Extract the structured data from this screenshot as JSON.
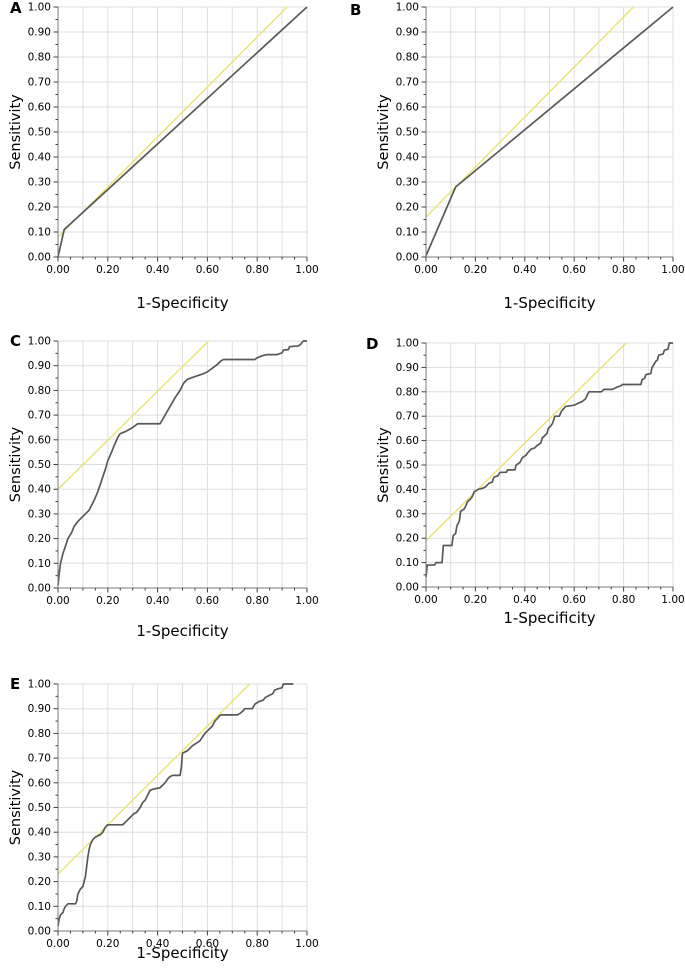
{
  "figure": {
    "panels": [
      {
        "label": "A"
      },
      {
        "label": "B"
      },
      {
        "label": "C"
      },
      {
        "label": "D"
      },
      {
        "label": "E"
      }
    ]
  },
  "colors": {
    "curve": "#595959",
    "reference": "#e9e472",
    "grid": "#dedede",
    "axis_line": "#7a7a7a",
    "tick": "#3f3f3f",
    "text": "#000000",
    "background": "#ffffff"
  },
  "axes": {
    "xlim": [
      0,
      1
    ],
    "ylim": [
      0,
      1
    ],
    "grid_step": 0.1,
    "minor_tick_step": 0.05,
    "x_tick_values": [
      0,
      0.2,
      0.4,
      0.6,
      0.8,
      1.0
    ],
    "x_tick_labels": [
      "0.00",
      "0.20",
      "0.40",
      "0.60",
      "0.80",
      "1.00"
    ],
    "y_tick_values": [
      0,
      0.1,
      0.2,
      0.3,
      0.4,
      0.5,
      0.6,
      0.7,
      0.8,
      0.9,
      1.0
    ],
    "y_tick_labels": [
      "0.00",
      "0.10",
      "0.20",
      "0.30",
      "0.40",
      "0.50",
      "0.60",
      "0.70",
      "0.80",
      "0.90",
      "1.00"
    ]
  },
  "chart_data": [
    {
      "type": "line",
      "panel": "A",
      "xlabel": "1-Specificity",
      "ylabel": "Sensitivity",
      "xlim": [
        0,
        1
      ],
      "ylim": [
        0,
        1
      ],
      "grid": true,
      "legend": "none",
      "series": [
        {
          "name": "ROC curve",
          "color": "#595959",
          "points": [
            [
              0,
              0
            ],
            [
              0.025,
              0.11
            ],
            [
              1,
              1
            ]
          ]
        },
        {
          "name": "Reference line",
          "color": "#e9e472",
          "points": [
            [
              0,
              0.08
            ],
            [
              0.92,
              1.0
            ]
          ]
        }
      ]
    },
    {
      "type": "line",
      "panel": "B",
      "xlabel": "1-Specificity",
      "ylabel": "Sensitivity",
      "xlim": [
        0,
        1
      ],
      "ylim": [
        0,
        1
      ],
      "grid": true,
      "legend": "none",
      "series": [
        {
          "name": "ROC curve",
          "color": "#595959",
          "points": [
            [
              0,
              0.005
            ],
            [
              0.12,
              0.28
            ],
            [
              1,
              1
            ]
          ]
        },
        {
          "name": "Reference line",
          "color": "#e9e472",
          "points": [
            [
              0,
              0.16
            ],
            [
              0.84,
              1.0
            ]
          ]
        }
      ]
    },
    {
      "type": "line",
      "panel": "C",
      "xlabel": "1-Specificity",
      "ylabel": "Sensitivity",
      "xlim": [
        0,
        1
      ],
      "ylim": [
        0,
        1
      ],
      "grid": true,
      "legend": "none",
      "series": [
        {
          "name": "ROC curve",
          "color": "#595959",
          "points": [
            [
              0,
              0.01
            ],
            [
              0.005,
              0.06
            ],
            [
              0.01,
              0.1
            ],
            [
              0.02,
              0.14
            ],
            [
              0.03,
              0.17
            ],
            [
              0.04,
              0.2
            ],
            [
              0.055,
              0.225
            ],
            [
              0.065,
              0.25
            ],
            [
              0.08,
              0.27
            ],
            [
              0.095,
              0.285
            ],
            [
              0.11,
              0.3
            ],
            [
              0.125,
              0.315
            ],
            [
              0.135,
              0.335
            ],
            [
              0.145,
              0.355
            ],
            [
              0.16,
              0.39
            ],
            [
              0.175,
              0.435
            ],
            [
              0.19,
              0.48
            ],
            [
              0.2,
              0.515
            ],
            [
              0.215,
              0.55
            ],
            [
              0.225,
              0.575
            ],
            [
              0.24,
              0.61
            ],
            [
              0.25,
              0.625
            ],
            [
              0.27,
              0.633
            ],
            [
              0.3,
              0.65
            ],
            [
              0.32,
              0.665
            ],
            [
              0.41,
              0.665
            ],
            [
              0.43,
              0.7
            ],
            [
              0.45,
              0.735
            ],
            [
              0.47,
              0.77
            ],
            [
              0.49,
              0.8
            ],
            [
              0.505,
              0.83
            ],
            [
              0.52,
              0.845
            ],
            [
              0.55,
              0.856
            ],
            [
              0.58,
              0.866
            ],
            [
              0.6,
              0.875
            ],
            [
              0.62,
              0.89
            ],
            [
              0.64,
              0.905
            ],
            [
              0.655,
              0.92
            ],
            [
              0.665,
              0.925
            ],
            [
              0.79,
              0.925
            ],
            [
              0.8,
              0.932
            ],
            [
              0.82,
              0.94
            ],
            [
              0.84,
              0.945
            ],
            [
              0.88,
              0.945
            ],
            [
              0.9,
              0.952
            ],
            [
              0.905,
              0.963
            ],
            [
              0.925,
              0.965
            ],
            [
              0.93,
              0.977
            ],
            [
              0.965,
              0.98
            ],
            [
              0.975,
              0.987
            ],
            [
              0.985,
              1.0
            ],
            [
              1.0,
              1.0
            ]
          ]
        },
        {
          "name": "Reference line",
          "color": "#e9e472",
          "points": [
            [
              0,
              0.4
            ],
            [
              0.605,
              1.0
            ]
          ]
        }
      ]
    },
    {
      "type": "line",
      "panel": "D",
      "xlabel": "1-Specificity",
      "ylabel": "Sensitivity",
      "xlim": [
        0,
        1
      ],
      "ylim": [
        0,
        1
      ],
      "grid": true,
      "legend": "none",
      "series": [
        {
          "name": "ROC curve",
          "color": "#595959",
          "points": [
            [
              0,
              0.04
            ],
            [
              0.005,
              0.09
            ],
            [
              0.035,
              0.09
            ],
            [
              0.04,
              0.1
            ],
            [
              0.065,
              0.1
            ],
            [
              0.07,
              0.17
            ],
            [
              0.105,
              0.17
            ],
            [
              0.11,
              0.21
            ],
            [
              0.12,
              0.22
            ],
            [
              0.125,
              0.25
            ],
            [
              0.135,
              0.27
            ],
            [
              0.14,
              0.31
            ],
            [
              0.155,
              0.32
            ],
            [
              0.16,
              0.33
            ],
            [
              0.168,
              0.35
            ],
            [
              0.18,
              0.36
            ],
            [
              0.187,
              0.37
            ],
            [
              0.195,
              0.39
            ],
            [
              0.21,
              0.4
            ],
            [
              0.23,
              0.405
            ],
            [
              0.24,
              0.41
            ],
            [
              0.255,
              0.425
            ],
            [
              0.268,
              0.43
            ],
            [
              0.275,
              0.45
            ],
            [
              0.29,
              0.455
            ],
            [
              0.3,
              0.47
            ],
            [
              0.325,
              0.47
            ],
            [
              0.33,
              0.48
            ],
            [
              0.36,
              0.48
            ],
            [
              0.365,
              0.5
            ],
            [
              0.38,
              0.51
            ],
            [
              0.39,
              0.53
            ],
            [
              0.405,
              0.54
            ],
            [
              0.412,
              0.55
            ],
            [
              0.425,
              0.565
            ],
            [
              0.44,
              0.57
            ],
            [
              0.45,
              0.58
            ],
            [
              0.465,
              0.59
            ],
            [
              0.47,
              0.61
            ],
            [
              0.48,
              0.62
            ],
            [
              0.49,
              0.63
            ],
            [
              0.495,
              0.65
            ],
            [
              0.505,
              0.66
            ],
            [
              0.512,
              0.67
            ],
            [
              0.517,
              0.685
            ],
            [
              0.522,
              0.7
            ],
            [
              0.54,
              0.7
            ],
            [
              0.548,
              0.72
            ],
            [
              0.557,
              0.73
            ],
            [
              0.565,
              0.74
            ],
            [
              0.6,
              0.745
            ],
            [
              0.61,
              0.75
            ],
            [
              0.62,
              0.755
            ],
            [
              0.632,
              0.76
            ],
            [
              0.645,
              0.77
            ],
            [
              0.652,
              0.785
            ],
            [
              0.66,
              0.8
            ],
            [
              0.71,
              0.8
            ],
            [
              0.72,
              0.81
            ],
            [
              0.755,
              0.81
            ],
            [
              0.765,
              0.815
            ],
            [
              0.775,
              0.82
            ],
            [
              0.79,
              0.825
            ],
            [
              0.795,
              0.83
            ],
            [
              0.87,
              0.83
            ],
            [
              0.875,
              0.85
            ],
            [
              0.885,
              0.855
            ],
            [
              0.89,
              0.87
            ],
            [
              0.91,
              0.875
            ],
            [
              0.915,
              0.9
            ],
            [
              0.922,
              0.91
            ],
            [
              0.93,
              0.925
            ],
            [
              0.937,
              0.93
            ],
            [
              0.942,
              0.95
            ],
            [
              0.96,
              0.955
            ],
            [
              0.965,
              0.97
            ],
            [
              0.98,
              0.975
            ],
            [
              0.985,
              1.0
            ],
            [
              1.0,
              1.0
            ]
          ]
        },
        {
          "name": "Reference line",
          "color": "#e9e472",
          "points": [
            [
              0,
              0.19
            ],
            [
              0.81,
              1.0
            ]
          ]
        }
      ]
    },
    {
      "type": "line",
      "panel": "E",
      "xlabel": "1-Specificity",
      "ylabel": "Sensitivity",
      "xlim": [
        0,
        1
      ],
      "ylim": [
        0,
        1
      ],
      "grid": true,
      "legend": "none",
      "series": [
        {
          "name": "ROC curve",
          "color": "#595959",
          "points": [
            [
              0,
              0.02
            ],
            [
              0.005,
              0.05
            ],
            [
              0.01,
              0.065
            ],
            [
              0.02,
              0.075
            ],
            [
              0.025,
              0.09
            ],
            [
              0.03,
              0.1
            ],
            [
              0.04,
              0.11
            ],
            [
              0.07,
              0.11
            ],
            [
              0.075,
              0.12
            ],
            [
              0.08,
              0.15
            ],
            [
              0.09,
              0.17
            ],
            [
              0.1,
              0.18
            ],
            [
              0.105,
              0.2
            ],
            [
              0.11,
              0.22
            ],
            [
              0.115,
              0.26
            ],
            [
              0.12,
              0.3
            ],
            [
              0.125,
              0.33
            ],
            [
              0.13,
              0.35
            ],
            [
              0.14,
              0.37
            ],
            [
              0.15,
              0.38
            ],
            [
              0.17,
              0.39
            ],
            [
              0.18,
              0.4
            ],
            [
              0.19,
              0.42
            ],
            [
              0.2,
              0.43
            ],
            [
              0.26,
              0.43
            ],
            [
              0.275,
              0.445
            ],
            [
              0.29,
              0.46
            ],
            [
              0.305,
              0.475
            ],
            [
              0.315,
              0.48
            ],
            [
              0.33,
              0.5
            ],
            [
              0.34,
              0.52
            ],
            [
              0.35,
              0.53
            ],
            [
              0.36,
              0.55
            ],
            [
              0.37,
              0.57
            ],
            [
              0.385,
              0.575
            ],
            [
              0.41,
              0.58
            ],
            [
              0.42,
              0.59
            ],
            [
              0.43,
              0.6
            ],
            [
              0.44,
              0.615
            ],
            [
              0.45,
              0.625
            ],
            [
              0.46,
              0.63
            ],
            [
              0.49,
              0.63
            ],
            [
              0.495,
              0.66
            ],
            [
              0.5,
              0.72
            ],
            [
              0.52,
              0.73
            ],
            [
              0.54,
              0.75
            ],
            [
              0.555,
              0.76
            ],
            [
              0.57,
              0.77
            ],
            [
              0.59,
              0.8
            ],
            [
              0.6,
              0.81
            ],
            [
              0.61,
              0.82
            ],
            [
              0.62,
              0.83
            ],
            [
              0.63,
              0.85
            ],
            [
              0.64,
              0.86
            ],
            [
              0.648,
              0.87
            ],
            [
              0.655,
              0.875
            ],
            [
              0.72,
              0.875
            ],
            [
              0.73,
              0.88
            ],
            [
              0.742,
              0.89
            ],
            [
              0.75,
              0.9
            ],
            [
              0.78,
              0.9
            ],
            [
              0.792,
              0.92
            ],
            [
              0.81,
              0.93
            ],
            [
              0.825,
              0.935
            ],
            [
              0.832,
              0.945
            ],
            [
              0.85,
              0.955
            ],
            [
              0.862,
              0.96
            ],
            [
              0.87,
              0.975
            ],
            [
              0.882,
              0.98
            ],
            [
              0.9,
              0.985
            ],
            [
              0.905,
              1.0
            ],
            [
              0.945,
              1.0
            ]
          ]
        },
        {
          "name": "Reference line",
          "color": "#e9e472",
          "points": [
            [
              0,
              0.23
            ],
            [
              0.77,
              1.0
            ]
          ]
        }
      ]
    }
  ]
}
